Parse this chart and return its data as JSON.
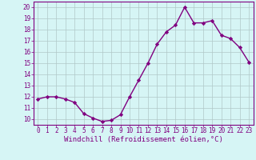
{
  "x": [
    0,
    1,
    2,
    3,
    4,
    5,
    6,
    7,
    8,
    9,
    10,
    11,
    12,
    13,
    14,
    15,
    16,
    17,
    18,
    19,
    20,
    21,
    22,
    23
  ],
  "y": [
    11.8,
    12.0,
    12.0,
    11.8,
    11.5,
    10.5,
    10.1,
    9.8,
    9.9,
    10.4,
    12.0,
    13.5,
    15.0,
    16.7,
    17.8,
    18.4,
    20.0,
    18.6,
    18.6,
    18.8,
    17.5,
    17.2,
    16.4,
    15.1
  ],
  "line_color": "#800080",
  "marker": "D",
  "markersize": 2.2,
  "linewidth": 1.0,
  "bg_color": "#d6f5f5",
  "grid_color": "#b0c8c8",
  "xlabel": "Windchill (Refroidissement éolien,°C)",
  "ylim": [
    9.5,
    20.5
  ],
  "xlim": [
    -0.5,
    23.5
  ],
  "yticks": [
    10,
    11,
    12,
    13,
    14,
    15,
    16,
    17,
    18,
    19,
    20
  ],
  "xticks": [
    0,
    1,
    2,
    3,
    4,
    5,
    6,
    7,
    8,
    9,
    10,
    11,
    12,
    13,
    14,
    15,
    16,
    17,
    18,
    19,
    20,
    21,
    22,
    23
  ],
  "tick_fontsize": 5.5,
  "xlabel_fontsize": 6.5,
  "tick_color": "#800080",
  "axis_color": "#800080",
  "spine_color": "#800080"
}
